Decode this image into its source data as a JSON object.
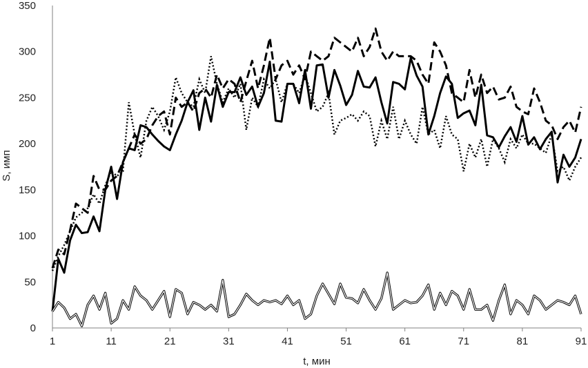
{
  "chart_data": {
    "type": "line",
    "title": "",
    "xlabel": "t, мин",
    "ylabel": "S, имп",
    "xlim": [
      1,
      91
    ],
    "ylim": [
      0,
      350
    ],
    "x_ticks": [
      "1",
      "11",
      "21",
      "31",
      "41",
      "51",
      "61",
      "71",
      "81",
      "91"
    ],
    "y_ticks": [
      "0",
      "50",
      "100",
      "150",
      "200",
      "250",
      "300",
      "350"
    ],
    "grid": false,
    "legend": "none",
    "x": [
      1,
      2,
      3,
      4,
      5,
      6,
      7,
      8,
      9,
      10,
      11,
      12,
      13,
      14,
      15,
      16,
      17,
      18,
      19,
      20,
      21,
      22,
      23,
      24,
      25,
      26,
      27,
      28,
      29,
      30,
      31,
      32,
      33,
      34,
      35,
      36,
      37,
      38,
      39,
      40,
      41,
      42,
      43,
      44,
      45,
      46,
      47,
      48,
      49,
      50,
      51,
      52,
      53,
      54,
      55,
      56,
      57,
      58,
      59,
      60,
      61,
      62,
      63,
      64,
      65,
      66,
      67,
      68,
      69,
      70,
      71,
      72,
      73,
      74,
      75,
      76,
      77,
      78,
      79,
      80,
      81,
      82,
      83,
      84,
      85,
      86,
      87,
      88,
      89,
      90,
      91
    ],
    "series": [
      {
        "style": "solid-thick",
        "values": [
          18,
          75,
          60,
          95,
          112,
          103,
          104,
          121,
          105,
          150,
          175,
          140,
          180,
          195,
          193,
          220,
          218,
          210,
          203,
          197,
          193,
          210,
          225,
          245,
          258,
          215,
          250,
          224,
          264,
          240,
          256,
          256,
          272,
          253,
          262,
          240,
          255,
          289,
          225,
          224,
          265,
          265,
          244,
          280,
          238,
          285,
          286,
          250,
          280,
          263,
          242,
          253,
          279,
          262,
          261,
          272,
          245,
          222,
          267,
          265,
          259,
          293,
          274,
          262,
          210,
          230,
          255,
          273,
          265,
          228,
          233,
          236,
          220,
          264,
          209,
          207,
          196,
          208,
          218,
          202,
          230,
          199,
          207,
          194,
          205,
          213,
          158,
          188,
          175,
          185,
          205
        ]
      },
      {
        "style": "dashed-thick",
        "values": [
          65,
          85,
          80,
          106,
          135,
          130,
          125,
          165,
          150,
          150,
          160,
          165,
          180,
          195,
          210,
          200,
          205,
          220,
          230,
          235,
          210,
          250,
          240,
          245,
          235,
          255,
          260,
          250,
          275,
          260,
          270,
          265,
          245,
          268,
          290,
          260,
          285,
          315,
          270,
          285,
          290,
          275,
          285,
          270,
          300,
          295,
          290,
          295,
          315,
          310,
          305,
          300,
          315,
          295,
          305,
          325,
          300,
          290,
          300,
          295,
          295,
          295,
          290,
          275,
          265,
          310,
          300,
          285,
          255,
          250,
          245,
          280,
          250,
          275,
          255,
          262,
          248,
          250,
          262,
          240,
          235,
          232,
          260,
          245,
          225,
          220,
          205,
          218,
          225,
          212,
          240
        ]
      },
      {
        "style": "dotted",
        "values": [
          62,
          78,
          90,
          105,
          120,
          125,
          130,
          145,
          135,
          155,
          170,
          165,
          170,
          245,
          210,
          185,
          225,
          240,
          230,
          215,
          235,
          272,
          255,
          245,
          240,
          270,
          255,
          295,
          265,
          245,
          260,
          250,
          265,
          215,
          250,
          240,
          270,
          260,
          270,
          245,
          265,
          265,
          255,
          275,
          255,
          235,
          240,
          255,
          210,
          225,
          228,
          232,
          225,
          235,
          230,
          197,
          225,
          205,
          240,
          205,
          225,
          210,
          200,
          240,
          210,
          215,
          195,
          230,
          210,
          205,
          170,
          200,
          185,
          205,
          175,
          205,
          195,
          180,
          205,
          195,
          210,
          200,
          200,
          195,
          190,
          210,
          170,
          175,
          160,
          175,
          185
        ]
      },
      {
        "style": "double-line",
        "values": [
          18,
          28,
          22,
          10,
          15,
          2,
          25,
          35,
          20,
          38,
          5,
          10,
          30,
          20,
          45,
          35,
          30,
          20,
          30,
          40,
          12,
          42,
          38,
          15,
          28,
          25,
          20,
          25,
          18,
          52,
          12,
          15,
          25,
          37,
          30,
          25,
          30,
          28,
          30,
          26,
          35,
          25,
          30,
          10,
          15,
          35,
          48,
          37,
          26,
          48,
          33,
          32,
          27,
          42,
          30,
          20,
          32,
          60,
          20,
          25,
          30,
          27,
          28,
          35,
          47,
          20,
          38,
          25,
          40,
          35,
          20,
          42,
          20,
          20,
          25,
          8,
          30,
          47,
          15,
          30,
          25,
          15,
          35,
          30,
          20,
          25,
          30,
          28,
          25,
          35,
          15
        ]
      }
    ]
  }
}
